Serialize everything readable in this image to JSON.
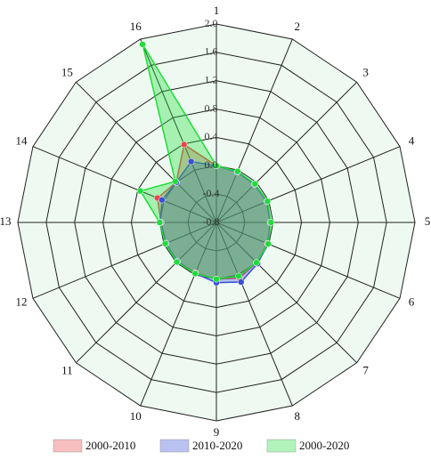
{
  "chart_data": {
    "type": "radar",
    "categories": [
      "1",
      "2",
      "3",
      "4",
      "5",
      "6",
      "7",
      "8",
      "9",
      "10",
      "11",
      "12",
      "13",
      "14",
      "15",
      "16"
    ],
    "rlim": [
      -0.8,
      2.0
    ],
    "rticks": [
      -0.8,
      -0.4,
      {
        "value": 0,
        "label": "0.0"
      },
      0.4,
      0.8,
      1.2,
      1.6,
      {
        "value": 2,
        "label": "2.0"
      }
    ],
    "grid": true,
    "legend": "bottom",
    "series": [
      {
        "name": "2000-2010",
        "color": "#e8474a",
        "values": [
          0.0,
          -0.03,
          -0.04,
          -0.03,
          -0.04,
          -0.02,
          0.0,
          0.05,
          0.0,
          -0.03,
          -0.02,
          -0.03,
          -0.02,
          0.1,
          0.0,
          0.39
        ]
      },
      {
        "name": "2010-2020",
        "color": "#3a4fd6",
        "values": [
          0.0,
          -0.03,
          -0.04,
          -0.03,
          -0.04,
          -0.01,
          0.02,
          0.11,
          0.05,
          -0.02,
          -0.02,
          -0.03,
          -0.01,
          0.03,
          0.0,
          0.13
        ]
      },
      {
        "name": "2000-2020",
        "color": "#1fdc3a",
        "values": [
          0.0,
          -0.02,
          -0.03,
          -0.02,
          -0.03,
          -0.01,
          0.0,
          0.02,
          0.0,
          -0.02,
          -0.01,
          -0.02,
          0.0,
          0.36,
          0.02,
          1.92
        ]
      }
    ]
  }
}
